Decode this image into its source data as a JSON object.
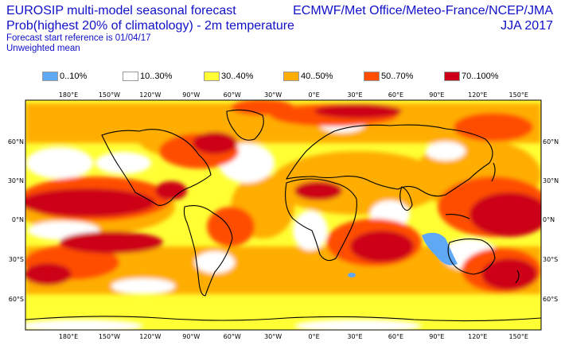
{
  "header": {
    "title_line1": "EUROSIP multi-model seasonal forecast",
    "title_line2": "Prob(highest 20% of climatology) - 2m temperature",
    "start_ref": "Forecast start reference is 01/04/17",
    "mean_type": "Unweighted mean",
    "centres": "ECMWF/Met Office/Meteo-France/NCEP/JMA",
    "season": "JJA 2017"
  },
  "legend": [
    {
      "label": "0..10%",
      "color": "#5fa8f5"
    },
    {
      "label": "10..30%",
      "color": "#ffffff"
    },
    {
      "label": "30..40%",
      "color": "#ffff33"
    },
    {
      "label": "40..50%",
      "color": "#ffad00"
    },
    {
      "label": "50..70%",
      "color": "#ff4e00"
    },
    {
      "label": "70..100%",
      "color": "#cc0018"
    }
  ],
  "axes": {
    "lon_top": [
      "180°E",
      "150°W",
      "120°W",
      "90°W",
      "60°W",
      "30°W",
      "0°E",
      "30°E",
      "60°E",
      "90°E",
      "120°E",
      "150°E"
    ],
    "lon_bottom": [
      "180°E",
      "150°W",
      "120°W",
      "90°W",
      "60°W",
      "30°W",
      "0°E",
      "30°E",
      "60°E",
      "90°E",
      "120°E",
      "150°E"
    ],
    "lat_left": [
      "60°N",
      "30°N",
      "0°N",
      "30°S",
      "60°S"
    ],
    "lat_right": [
      "60°N",
      "30°N",
      "0°N",
      "30°S",
      "60°S"
    ]
  }
}
